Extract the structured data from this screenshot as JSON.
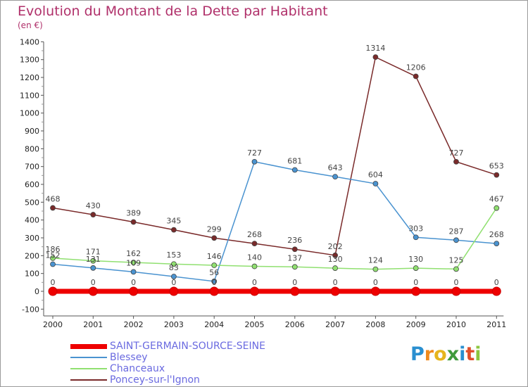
{
  "title": "Evolution du Montant de la Dette par Habitant",
  "unit": "(en €)",
  "logo": {
    "letters": [
      "P",
      "r",
      "o",
      "x",
      "i",
      "t",
      "i"
    ],
    "colors": [
      "#2a8fd0",
      "#f08a1c",
      "#e6b51d",
      "#3f9a3c",
      "#2a8fd0",
      "#e04d2a",
      "#8cc63f"
    ]
  },
  "chart_data": {
    "type": "line",
    "title": "Evolution du Montant de la Dette par Habitant",
    "ylabel": "(en €)",
    "xlabel": "",
    "categories": [
      "2000",
      "2001",
      "2002",
      "2003",
      "2004",
      "2005",
      "2006",
      "2007",
      "2008",
      "2009",
      "2010",
      "2011"
    ],
    "ylim": [
      -100,
      1400
    ],
    "yticks": [
      "-100",
      "0",
      "100",
      "200",
      "300",
      "400",
      "500",
      "600",
      "700",
      "800",
      "900",
      "1000",
      "1100",
      "1200",
      "1300",
      "1400"
    ],
    "grid": false,
    "legend": "bottom",
    "series": [
      {
        "name": "SAINT-GERMAIN-SOURCE-SEINE",
        "color": "#ee0000",
        "values": [
          0,
          0,
          0,
          0,
          0,
          0,
          0,
          0,
          0,
          0,
          0,
          0
        ],
        "labels": [
          "0",
          "0",
          "0",
          "0",
          "0",
          "0",
          "0",
          "0",
          "0",
          "0",
          "0",
          "0"
        ]
      },
      {
        "name": "Blessey",
        "color": "#4a93d0",
        "values": [
          152,
          131,
          109,
          83,
          56,
          727,
          681,
          643,
          604,
          303,
          287,
          268
        ],
        "labels": [
          "152",
          "131",
          "109",
          "83",
          "56",
          "727",
          "681",
          "643",
          "604",
          "303",
          "287",
          "268"
        ]
      },
      {
        "name": "Chanceaux",
        "color": "#90e070",
        "values": [
          186,
          171,
          162,
          153,
          146,
          140,
          137,
          130,
          124,
          130,
          125,
          467
        ],
        "labels": [
          "186",
          "171",
          "162",
          "153",
          "146",
          "140",
          "137",
          "130",
          "124",
          "130",
          "125",
          "467"
        ]
      },
      {
        "name": "Poncey-sur-l'Ignon",
        "color": "#7a2a2a",
        "values": [
          468,
          430,
          389,
          345,
          299,
          268,
          236,
          202,
          1314,
          1206,
          727,
          653
        ],
        "labels": [
          "468",
          "430",
          "389",
          "345",
          "299",
          "268",
          "236",
          "202",
          "1314",
          "1206",
          "727",
          "653"
        ]
      }
    ]
  }
}
